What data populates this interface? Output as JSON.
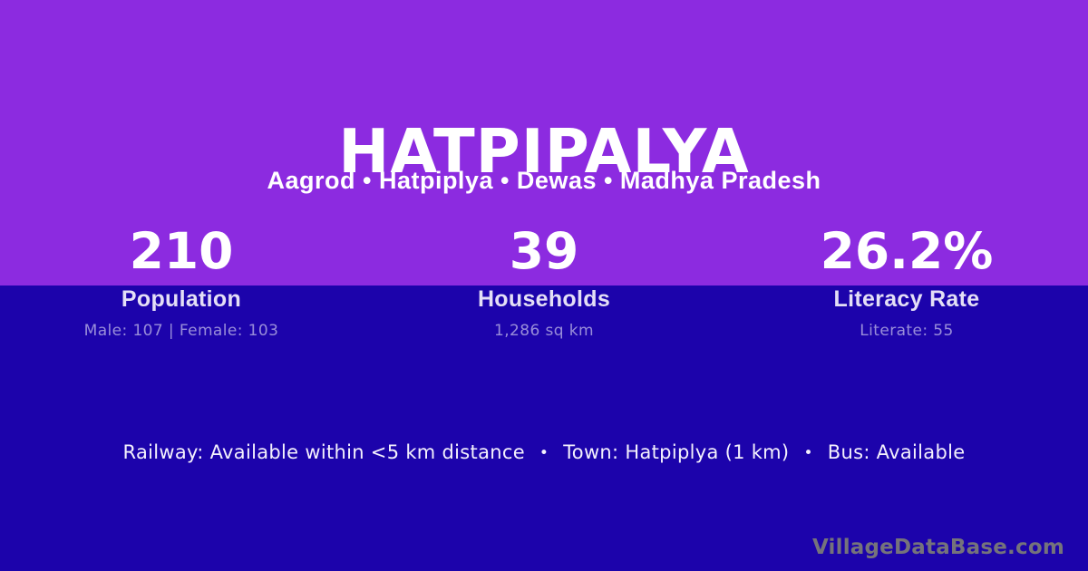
{
  "theme": {
    "top_background": "#8C2BE0",
    "bottom_background": "#1C03AB",
    "primary_text": "#FFFFFF",
    "muted_text": "#9B90D8",
    "watermark_text": "#75737B"
  },
  "header": {
    "title": "HATPIPALYA",
    "breadcrumb": "Aagrod • Hatpiplya • Dewas • Madhya Pradesh"
  },
  "stats": [
    {
      "value": "210",
      "label": "Population",
      "detail": "Male: 107 | Female: 103"
    },
    {
      "value": "39",
      "label": "Households",
      "detail": "1,286 sq km"
    },
    {
      "value": "26.2%",
      "label": "Literacy Rate",
      "detail": "Literate: 55"
    }
  ],
  "amenities": {
    "separator": "•",
    "items": [
      "Railway: Available within <5 km distance",
      "Town: Hatpiplya (1 km)",
      "Bus: Available"
    ]
  },
  "watermark": "VillageDataBase.com"
}
